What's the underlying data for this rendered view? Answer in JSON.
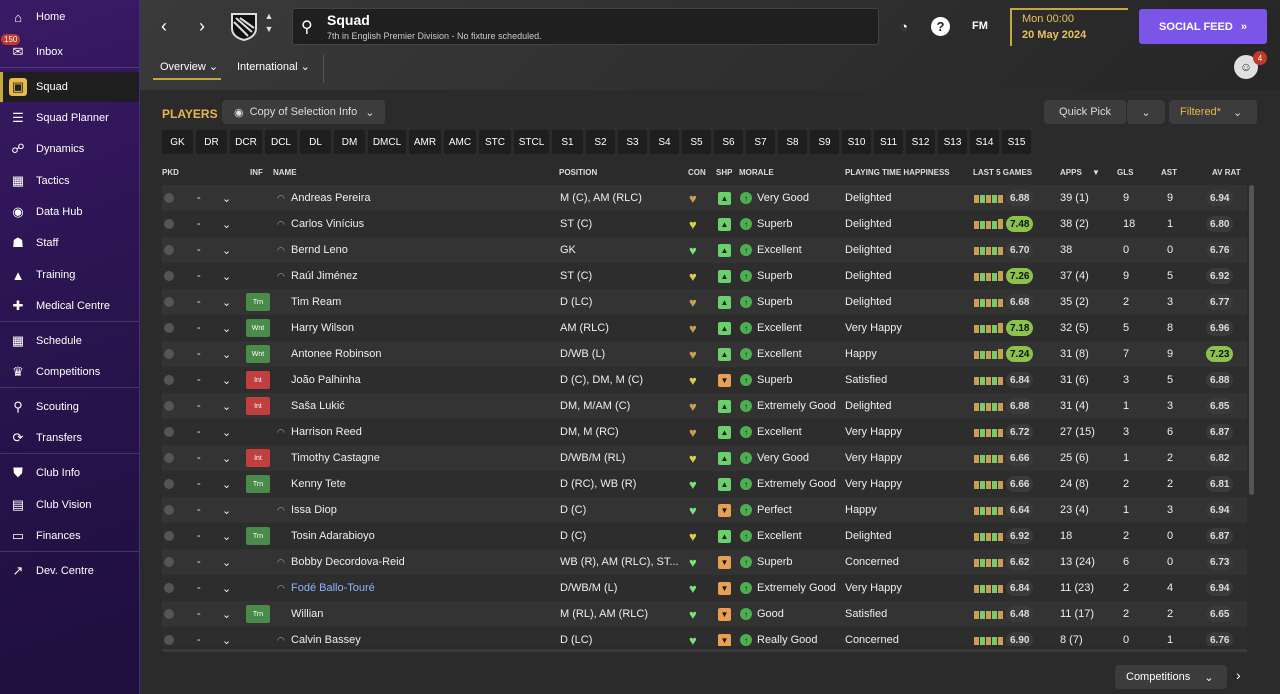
{
  "sidebar": {
    "items": [
      {
        "label": "Home",
        "icon": "home-icon",
        "glyph": "⌂"
      },
      {
        "label": "Inbox",
        "icon": "inbox-icon",
        "glyph": "✉",
        "badge": "150"
      },
      {
        "label": "Squad",
        "icon": "squad-shirt-icon",
        "glyph": "▣"
      },
      {
        "label": "Squad Planner",
        "icon": "planner-icon",
        "glyph": "☰"
      },
      {
        "label": "Dynamics",
        "icon": "dynamics-icon",
        "glyph": "☍"
      },
      {
        "label": "Tactics",
        "icon": "tactics-icon",
        "glyph": "▦"
      },
      {
        "label": "Data Hub",
        "icon": "data-hub-icon",
        "glyph": "◉"
      },
      {
        "label": "Staff",
        "icon": "staff-icon",
        "glyph": "☗"
      },
      {
        "label": "Training",
        "icon": "training-icon",
        "glyph": "▲"
      },
      {
        "label": "Medical Centre",
        "icon": "medical-icon",
        "glyph": "✚"
      },
      {
        "label": "Schedule",
        "icon": "schedule-icon",
        "glyph": "▦"
      },
      {
        "label": "Competitions",
        "icon": "trophy-icon",
        "glyph": "♛"
      },
      {
        "label": "Scouting",
        "icon": "scouting-icon",
        "glyph": "⚲"
      },
      {
        "label": "Transfers",
        "icon": "transfers-icon",
        "glyph": "⟳"
      },
      {
        "label": "Club Info",
        "icon": "club-info-icon",
        "glyph": "⛊"
      },
      {
        "label": "Club Vision",
        "icon": "club-vision-icon",
        "glyph": "▤"
      },
      {
        "label": "Finances",
        "icon": "finances-icon",
        "glyph": "▭"
      },
      {
        "label": "Dev. Centre",
        "icon": "dev-centre-icon",
        "glyph": "↗"
      }
    ]
  },
  "header": {
    "title": "Squad",
    "subtitle": "7th in English Premier Division - No fixture scheduled.",
    "fm_label": "FM",
    "help_label": "?",
    "date_time": "Mon 00:00",
    "date": "20 May 2024",
    "social_feed": "SOCIAL FEED",
    "avatar_badge": "4",
    "tabs": [
      "Overview",
      "International"
    ]
  },
  "players_panel": {
    "label": "PLAYERS",
    "copy_view": "Copy of Selection Info",
    "quick_pick": "Quick Pick",
    "filtered": "Filtered*",
    "positions": [
      "GK",
      "DR",
      "DCR",
      "DCL",
      "DL",
      "DM",
      "DMCL",
      "AMR",
      "AMC",
      "STC",
      "STCL",
      "S1",
      "S2",
      "S3",
      "S4",
      "S5",
      "S6",
      "S7",
      "S8",
      "S9",
      "S10",
      "S11",
      "S12",
      "S13",
      "S14",
      "S15"
    ]
  },
  "columns": {
    "pkd": "PKD",
    "inf": "INF",
    "name": "NAME",
    "position": "POSITION",
    "con": "CON",
    "shp": "SHP",
    "morale": "MORALE",
    "pt_happiness": "PLAYING TIME HAPPINESS",
    "last5": "LAST 5 GAMES",
    "apps": "APPS",
    "gls": "GLS",
    "ast": "AST",
    "av_rat": "AV RAT"
  },
  "players": [
    {
      "name": "Andreas Pereira",
      "pkd": "-",
      "inf": "",
      "position": "M (C), AM (RLC)",
      "con": "gold",
      "shp": "green",
      "morale": "Very Good",
      "happiness": "Delighted",
      "last5": "6.88",
      "last5_hi": false,
      "apps": "39 (1)",
      "gls": "9",
      "ast": "9",
      "avrat": "6.94",
      "avrat_hi": false
    },
    {
      "name": "Carlos Vinícius",
      "pkd": "-",
      "inf": "",
      "position": "ST (C)",
      "con": "yellow",
      "shp": "green",
      "morale": "Superb",
      "happiness": "Delighted",
      "last5": "7.48",
      "last5_hi": true,
      "apps": "38 (2)",
      "gls": "18",
      "ast": "1",
      "avrat": "6.80",
      "avrat_hi": false
    },
    {
      "name": "Bernd Leno",
      "pkd": "-",
      "inf": "",
      "position": "GK",
      "con": "green",
      "shp": "green",
      "morale": "Excellent",
      "happiness": "Delighted",
      "last5": "6.70",
      "last5_hi": false,
      "apps": "38",
      "gls": "0",
      "ast": "0",
      "avrat": "6.76",
      "avrat_hi": false
    },
    {
      "name": "Raúl Jiménez",
      "pkd": "-",
      "inf": "",
      "position": "ST (C)",
      "con": "yellow",
      "shp": "green",
      "morale": "Superb",
      "happiness": "Delighted",
      "last5": "7.26",
      "last5_hi": true,
      "apps": "37 (4)",
      "gls": "9",
      "ast": "5",
      "avrat": "6.92",
      "avrat_hi": false
    },
    {
      "name": "Tim Ream",
      "pkd": "-",
      "inf": "Trn",
      "position": "D (LC)",
      "con": "gold",
      "shp": "green",
      "morale": "Superb",
      "happiness": "Delighted",
      "last5": "6.68",
      "last5_hi": false,
      "apps": "35 (2)",
      "gls": "2",
      "ast": "3",
      "avrat": "6.77",
      "avrat_hi": false
    },
    {
      "name": "Harry Wilson",
      "pkd": "-",
      "inf": "Wnt",
      "position": "AM (RLC)",
      "con": "gold",
      "shp": "green",
      "morale": "Excellent",
      "happiness": "Very Happy",
      "last5": "7.18",
      "last5_hi": true,
      "apps": "32 (5)",
      "gls": "5",
      "ast": "8",
      "avrat": "6.96",
      "avrat_hi": false
    },
    {
      "name": "Antonee Robinson",
      "pkd": "-",
      "inf": "Wnt",
      "position": "D/WB (L)",
      "con": "gold",
      "shp": "green",
      "morale": "Excellent",
      "happiness": "Happy",
      "last5": "7.24",
      "last5_hi": true,
      "apps": "31 (8)",
      "gls": "7",
      "ast": "9",
      "avrat": "7.23",
      "avrat_hi": true
    },
    {
      "name": "João Palhinha",
      "pkd": "-",
      "inf": "Int",
      "position": "D (C), DM, M (C)",
      "con": "yellow",
      "shp": "orange",
      "morale": "Superb",
      "happiness": "Satisfied",
      "last5": "6.84",
      "last5_hi": false,
      "apps": "31 (6)",
      "gls": "3",
      "ast": "5",
      "avrat": "6.88",
      "avrat_hi": false
    },
    {
      "name": "Saša Lukić",
      "pkd": "-",
      "inf": "Int",
      "position": "DM, M/AM (C)",
      "con": "gold",
      "shp": "green",
      "morale": "Extremely Good",
      "happiness": "Delighted",
      "last5": "6.88",
      "last5_hi": false,
      "apps": "31 (4)",
      "gls": "1",
      "ast": "3",
      "avrat": "6.85",
      "avrat_hi": false
    },
    {
      "name": "Harrison Reed",
      "pkd": "-",
      "inf": "",
      "position": "DM, M (RC)",
      "con": "gold",
      "shp": "green",
      "morale": "Excellent",
      "happiness": "Very Happy",
      "last5": "6.72",
      "last5_hi": false,
      "apps": "27 (15)",
      "gls": "3",
      "ast": "6",
      "avrat": "6.87",
      "avrat_hi": false
    },
    {
      "name": "Timothy Castagne",
      "pkd": "-",
      "inf": "Int",
      "position": "D/WB/M (RL)",
      "con": "yellow",
      "shp": "green",
      "morale": "Very Good",
      "happiness": "Very Happy",
      "last5": "6.66",
      "last5_hi": false,
      "apps": "25 (6)",
      "gls": "1",
      "ast": "2",
      "avrat": "6.82",
      "avrat_hi": false
    },
    {
      "name": "Kenny Tete",
      "pkd": "-",
      "inf": "Trn",
      "position": "D (RC), WB (R)",
      "con": "green",
      "shp": "green",
      "morale": "Extremely Good",
      "happiness": "Very Happy",
      "last5": "6.66",
      "last5_hi": false,
      "apps": "24 (8)",
      "gls": "2",
      "ast": "2",
      "avrat": "6.81",
      "avrat_hi": false
    },
    {
      "name": "Issa Diop",
      "pkd": "-",
      "inf": "",
      "position": "D (C)",
      "con": "green",
      "shp": "orange",
      "morale": "Perfect",
      "happiness": "Happy",
      "last5": "6.64",
      "last5_hi": false,
      "apps": "23 (4)",
      "gls": "1",
      "ast": "3",
      "avrat": "6.94",
      "avrat_hi": false
    },
    {
      "name": "Tosin Adarabioyo",
      "pkd": "-",
      "inf": "Trn",
      "position": "D (C)",
      "con": "yellow",
      "shp": "green",
      "morale": "Excellent",
      "happiness": "Delighted",
      "last5": "6.92",
      "last5_hi": false,
      "apps": "18",
      "gls": "2",
      "ast": "0",
      "avrat": "6.87",
      "avrat_hi": false
    },
    {
      "name": "Bobby Decordova-Reid",
      "pkd": "-",
      "inf": "",
      "position": "WB (R), AM (RLC), ST...",
      "con": "green",
      "shp": "orange",
      "morale": "Superb",
      "happiness": "Concerned",
      "last5": "6.62",
      "last5_hi": false,
      "apps": "13 (24)",
      "gls": "6",
      "ast": "0",
      "avrat": "6.73",
      "avrat_hi": false
    },
    {
      "name": "Fodé Ballo-Touré",
      "pkd": "-",
      "inf": "",
      "position": "D/WB/M (L)",
      "con": "green",
      "shp": "orange",
      "morale": "Extremely Good",
      "happiness": "Very Happy",
      "last5": "6.84",
      "last5_hi": false,
      "apps": "11 (23)",
      "gls": "2",
      "ast": "4",
      "avrat": "6.94",
      "avrat_hi": false,
      "link": true
    },
    {
      "name": "Willian",
      "pkd": "-",
      "inf": "Trn",
      "position": "M (RL), AM (RLC)",
      "con": "green",
      "shp": "orange",
      "morale": "Good",
      "happiness": "Satisfied",
      "last5": "6.48",
      "last5_hi": false,
      "apps": "11 (17)",
      "gls": "2",
      "ast": "2",
      "avrat": "6.65",
      "avrat_hi": false
    },
    {
      "name": "Calvin Bassey",
      "pkd": "-",
      "inf": "",
      "position": "D (LC)",
      "con": "green",
      "shp": "orange",
      "morale": "Really Good",
      "happiness": "Concerned",
      "last5": "6.90",
      "last5_hi": false,
      "apps": "8 (7)",
      "gls": "0",
      "ast": "1",
      "avrat": "6.76",
      "avrat_hi": false
    }
  ],
  "footer": {
    "competitions": "Competitions"
  },
  "colors": {
    "accent": "#c8a83c",
    "social": "#7a55e8",
    "good": "#8bc34a",
    "bad": "#c04040"
  }
}
